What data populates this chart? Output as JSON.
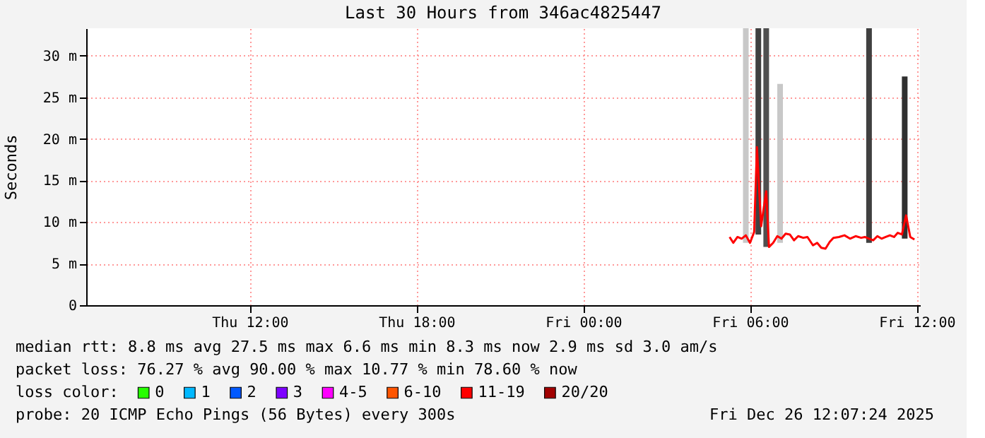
{
  "chart_data": {
    "type": "line",
    "title": "Last 30 Hours from 346ac4825447",
    "ylabel": "Seconds",
    "legend_title": "loss color:",
    "xlim": [
      "2025-12-25T06:07",
      "2025-12-26T12:07"
    ],
    "xticks": [
      {
        "value": "2025-12-25T12:00",
        "label": "Thu 12:00"
      },
      {
        "value": "2025-12-25T18:00",
        "label": "Thu 18:00"
      },
      {
        "value": "2025-12-26T00:00",
        "label": "Fri 00:00"
      },
      {
        "value": "2025-12-26T06:00",
        "label": "Fri 06:00"
      },
      {
        "value": "2025-12-26T12:00",
        "label": "Fri 12:00"
      }
    ],
    "ylim": [
      0,
      33.3
    ],
    "yticks": [
      0,
      {
        "value": 5,
        "label": "5 m"
      },
      {
        "value": 10,
        "label": "10 m"
      },
      {
        "value": 15,
        "label": "15 m"
      },
      {
        "value": 20,
        "label": "20 m"
      },
      {
        "value": 25,
        "label": "25 m"
      },
      {
        "value": 30,
        "label": "30 m"
      }
    ],
    "grid": true,
    "legend": "bottom",
    "series": [
      {
        "type": "bar",
        "x": [
          "2025-12-26T05:51",
          "2025-12-26T06:18",
          "2025-12-26T06:35",
          "2025-12-26T07:05",
          "2025-12-26T10:17",
          "2025-12-26T11:34"
        ],
        "base": [
          7.5,
          8.5,
          7,
          7.5,
          7.5,
          8
        ],
        "values": [
          25.8,
          24.8,
          26.3,
          19.1,
          25.8,
          19.5
        ],
        "colors": [
          "#c8c8c8",
          "#404040",
          "#505050",
          "#c8c8c8",
          "#404040",
          "#303030"
        ]
      },
      {
        "name": "0",
        "color": "#26ff00"
      },
      {
        "name": "1",
        "color": "#00b8ff"
      },
      {
        "name": "2",
        "color": "#0059ff"
      },
      {
        "name": "3",
        "color": "#7e00ff"
      },
      {
        "name": "4-5",
        "color": "#ff00ff"
      },
      {
        "name": "6-10",
        "color": "#ff5500"
      },
      {
        "name": "11-19",
        "color": "#ff0000",
        "x": [
          "2025-12-26T05:16",
          "2025-12-26T05:24",
          "2025-12-26T05:33",
          "2025-12-26T05:42",
          "2025-12-26T05:51",
          "2025-12-26T06:00",
          "2025-12-26T06:09",
          "2025-12-26T06:15",
          "2025-12-26T06:24",
          "2025-12-26T06:35",
          "2025-12-26T06:41",
          "2025-12-26T06:50",
          "2025-12-26T06:59",
          "2025-12-26T07:08",
          "2025-12-26T07:17",
          "2025-12-26T07:26",
          "2025-12-26T07:35",
          "2025-12-26T07:44",
          "2025-12-26T07:55",
          "2025-12-26T08:04",
          "2025-12-26T08:16",
          "2025-12-26T08:25",
          "2025-12-26T08:34",
          "2025-12-26T08:43",
          "2025-12-26T08:52",
          "2025-12-26T09:00",
          "2025-12-26T09:12",
          "2025-12-26T09:24",
          "2025-12-26T09:36",
          "2025-12-26T09:48",
          "2025-12-26T10:00",
          "2025-12-26T10:08",
          "2025-12-26T10:17",
          "2025-12-26T10:26",
          "2025-12-26T10:35",
          "2025-12-26T10:44",
          "2025-12-26T10:53",
          "2025-12-26T11:02",
          "2025-12-26T11:11",
          "2025-12-26T11:19",
          "2025-12-26T11:28",
          "2025-12-26T11:37",
          "2025-12-26T11:46",
          "2025-12-26T11:55"
        ],
        "values": [
          8.2,
          7.5,
          8.2,
          8.0,
          8.4,
          7.5,
          8.8,
          19,
          9.5,
          13.7,
          7.0,
          7.5,
          8.3,
          8.0,
          8.6,
          8.5,
          7.8,
          8.3,
          8.1,
          8.2,
          7.2,
          7.5,
          6.9,
          6.8,
          7.6,
          8.1,
          8.2,
          8.4,
          8.0,
          8.3,
          8.1,
          8.2,
          8.0,
          7.8,
          8.3,
          8.0,
          8.2,
          8.4,
          8.2,
          8.7,
          8.5,
          10.8,
          8.2,
          7.9
        ]
      },
      {
        "name": "20/20",
        "color": "#a10000"
      }
    ],
    "annotations": [
      "median rtt:  8.8 ms avg  27.5 ms max  6.6 ms min  8.3 ms now  2.9 ms sd  3.0   am/s",
      "packet loss: 76.27 % avg  90.00 % max  10.77 % min  78.60 % now",
      "probe:       20 ICMP Echo Pings (56 Bytes) every 300s",
      "Fri Dec 26 12:07:24 2025"
    ]
  }
}
